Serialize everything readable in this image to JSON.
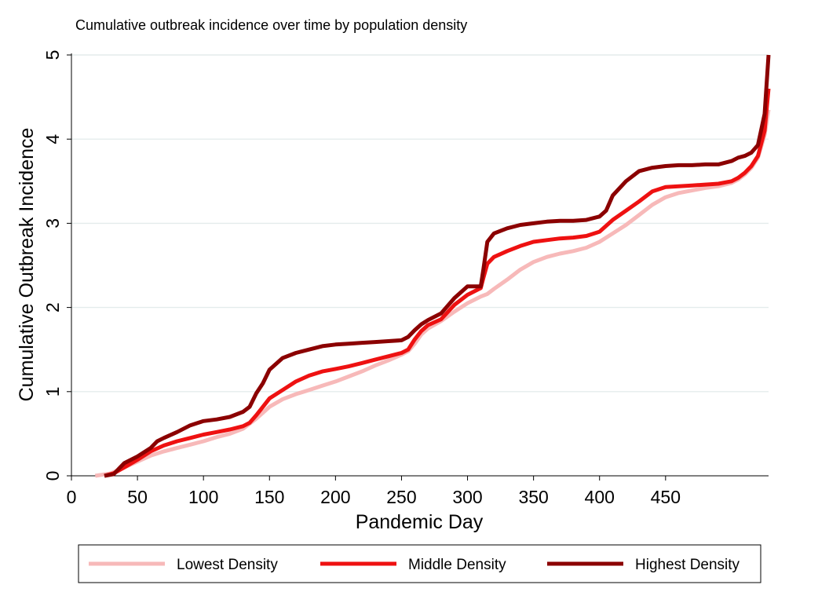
{
  "chart_data": {
    "type": "line",
    "title": "Cumulative outbreak incidence over time by population density",
    "xlabel": "Pandemic Day",
    "ylabel": "Cumulative Outbreak Incidence",
    "xlim": [
      0,
      528
    ],
    "ylim": [
      0,
      5
    ],
    "x_ticks": [
      0,
      50,
      100,
      150,
      200,
      250,
      300,
      350,
      400,
      450
    ],
    "y_ticks": [
      0,
      1,
      2,
      3,
      4,
      5
    ],
    "grid": "horizontal",
    "legend_position": "bottom",
    "series": [
      {
        "name": "Lowest Density",
        "color": "#f7b9b9",
        "x": [
          18,
          30,
          40,
          50,
          60,
          70,
          80,
          90,
          100,
          110,
          120,
          130,
          140,
          150,
          160,
          170,
          180,
          190,
          200,
          210,
          220,
          230,
          240,
          250,
          255,
          260,
          265,
          270,
          280,
          290,
          300,
          310,
          315,
          320,
          330,
          340,
          350,
          360,
          370,
          380,
          390,
          400,
          410,
          420,
          430,
          440,
          450,
          460,
          470,
          480,
          490,
          500,
          505,
          510,
          515,
          520,
          525,
          528
        ],
        "y": [
          0,
          0.03,
          0.1,
          0.17,
          0.24,
          0.29,
          0.33,
          0.37,
          0.41,
          0.46,
          0.5,
          0.56,
          0.68,
          0.82,
          0.91,
          0.97,
          1.02,
          1.07,
          1.12,
          1.18,
          1.24,
          1.31,
          1.37,
          1.44,
          1.48,
          1.57,
          1.68,
          1.75,
          1.84,
          1.95,
          2.05,
          2.13,
          2.16,
          2.22,
          2.33,
          2.45,
          2.54,
          2.6,
          2.64,
          2.67,
          2.71,
          2.78,
          2.88,
          2.98,
          3.1,
          3.22,
          3.31,
          3.36,
          3.39,
          3.42,
          3.44,
          3.48,
          3.52,
          3.58,
          3.66,
          3.78,
          4.05,
          4.35
        ]
      },
      {
        "name": "Middle Density",
        "color": "#ee1111",
        "x": [
          25,
          32,
          40,
          50,
          60,
          70,
          80,
          90,
          100,
          110,
          120,
          130,
          135,
          140,
          150,
          160,
          170,
          180,
          190,
          200,
          210,
          220,
          230,
          240,
          250,
          255,
          260,
          265,
          270,
          280,
          290,
          300,
          310,
          312,
          315,
          320,
          330,
          340,
          350,
          360,
          370,
          380,
          390,
          400,
          410,
          420,
          430,
          440,
          450,
          460,
          470,
          480,
          490,
          500,
          505,
          510,
          515,
          520,
          525,
          528
        ],
        "y": [
          0,
          0.03,
          0.1,
          0.19,
          0.29,
          0.36,
          0.41,
          0.45,
          0.49,
          0.52,
          0.55,
          0.59,
          0.63,
          0.72,
          0.92,
          1.02,
          1.12,
          1.19,
          1.24,
          1.27,
          1.3,
          1.34,
          1.38,
          1.42,
          1.46,
          1.5,
          1.62,
          1.72,
          1.79,
          1.86,
          2.03,
          2.15,
          2.23,
          2.35,
          2.52,
          2.6,
          2.67,
          2.73,
          2.78,
          2.8,
          2.82,
          2.83,
          2.85,
          2.9,
          3.04,
          3.15,
          3.26,
          3.38,
          3.43,
          3.44,
          3.45,
          3.46,
          3.47,
          3.5,
          3.54,
          3.6,
          3.68,
          3.8,
          4.1,
          4.6
        ]
      },
      {
        "name": "Highest Density",
        "color": "#8b0000",
        "x": [
          25,
          32,
          40,
          50,
          60,
          65,
          70,
          80,
          90,
          100,
          110,
          120,
          130,
          135,
          140,
          145,
          150,
          160,
          170,
          180,
          190,
          200,
          210,
          220,
          230,
          240,
          250,
          255,
          260,
          265,
          270,
          280,
          290,
          300,
          310,
          312,
          315,
          320,
          330,
          340,
          350,
          360,
          370,
          380,
          390,
          400,
          405,
          410,
          420,
          430,
          440,
          450,
          460,
          470,
          480,
          490,
          500,
          505,
          510,
          515,
          520,
          525,
          528
        ],
        "y": [
          0,
          0.02,
          0.15,
          0.23,
          0.33,
          0.41,
          0.45,
          0.52,
          0.6,
          0.65,
          0.67,
          0.7,
          0.76,
          0.82,
          0.98,
          1.1,
          1.26,
          1.4,
          1.46,
          1.5,
          1.54,
          1.56,
          1.57,
          1.58,
          1.59,
          1.6,
          1.61,
          1.65,
          1.73,
          1.8,
          1.85,
          1.93,
          2.11,
          2.25,
          2.25,
          2.45,
          2.78,
          2.88,
          2.94,
          2.98,
          3.0,
          3.02,
          3.03,
          3.03,
          3.04,
          3.08,
          3.15,
          3.33,
          3.5,
          3.62,
          3.66,
          3.68,
          3.69,
          3.69,
          3.7,
          3.7,
          3.74,
          3.78,
          3.8,
          3.84,
          3.93,
          4.3,
          5.0
        ]
      }
    ]
  }
}
